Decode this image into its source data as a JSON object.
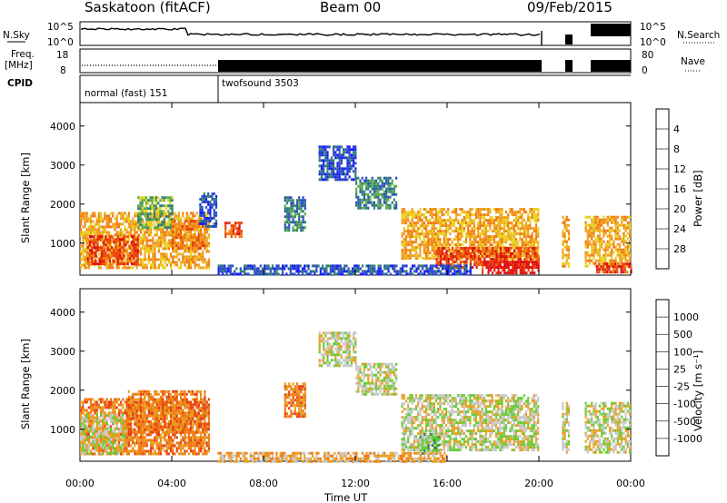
{
  "header": {
    "station": "Saskatoon (fitACF)",
    "beam": "Beam 00",
    "date": "09/Feb/2015"
  },
  "panels": {
    "nsky_label": "N.Sky",
    "freq_label_1": "Freq.",
    "freq_label_2": "[MHz]",
    "cpid_label": "CPID",
    "nsearch_label": "N.Search",
    "nave_label": "Nave",
    "nsky_ticks": [
      "10^5",
      "10^0"
    ],
    "nsearch_ticks": [
      "10^5",
      "10^0"
    ],
    "freq_ticks": [
      "18",
      "8"
    ],
    "nave_ticks": [
      "80",
      "0"
    ],
    "cpid_segments": [
      {
        "label": "normal (fast) 151",
        "start_hour": 0,
        "end_hour": 6
      },
      {
        "label": "twofsound 3503",
        "start_hour": 6,
        "end_hour": 24
      }
    ]
  },
  "chart_data": [
    {
      "type": "heatmap",
      "name": "Power",
      "xlabel": "",
      "ylabel": "Slant Range [km]",
      "xlim": [
        0,
        24
      ],
      "ylim": [
        180,
        4600
      ],
      "x_ticks": [
        "00:00",
        "04:00",
        "08:00",
        "12:00",
        "16:00",
        "20:00",
        "00:00"
      ],
      "y_ticks": [
        "1000",
        "2000",
        "3000",
        "4000"
      ],
      "y_tick_values": [
        1000,
        2000,
        3000,
        4000
      ],
      "colorbar": {
        "label": "Power [dB]",
        "ticks": [
          "4",
          "8",
          "12",
          "16",
          "20",
          "24",
          "28"
        ],
        "colors": [
          "#1a1aff",
          "#2b4fbf",
          "#2f7f74",
          "#5aab4a",
          "#e8d01c",
          "#f0a020",
          "#f07a10",
          "#e8440e",
          "#e01010"
        ]
      },
      "regions": [
        {
          "t0": 0.0,
          "t1": 5.6,
          "r0": 400,
          "r1": 1800,
          "level": 5
        },
        {
          "t0": 0.3,
          "t1": 2.5,
          "r0": 500,
          "r1": 1200,
          "level": 7
        },
        {
          "t0": 2.5,
          "t1": 4.0,
          "r0": 1400,
          "r1": 2200,
          "level": 3
        },
        {
          "t0": 4.0,
          "t1": 5.4,
          "r0": 900,
          "r1": 1600,
          "level": 6
        },
        {
          "t0": 5.2,
          "t1": 5.9,
          "r0": 1400,
          "r1": 2300,
          "level": 1
        },
        {
          "t0": 6.3,
          "t1": 7.0,
          "r0": 1150,
          "r1": 1550,
          "level": 7
        },
        {
          "t0": 8.9,
          "t1": 9.8,
          "r0": 1300,
          "r1": 2200,
          "level": 2
        },
        {
          "t0": 10.4,
          "t1": 12.0,
          "r0": 2600,
          "r1": 3500,
          "level": 1
        },
        {
          "t0": 12.0,
          "t1": 13.8,
          "r0": 1900,
          "r1": 2700,
          "level": 2
        },
        {
          "t0": 14.0,
          "t1": 20.0,
          "r0": 600,
          "r1": 1900,
          "level": 5
        },
        {
          "t0": 15.5,
          "t1": 20.0,
          "r0": 400,
          "r1": 900,
          "level": 7
        },
        {
          "t0": 17.5,
          "t1": 20.0,
          "r0": 250,
          "r1": 550,
          "level": 8
        },
        {
          "t0": 21.0,
          "t1": 21.3,
          "r0": 400,
          "r1": 1700,
          "level": 5
        },
        {
          "t0": 22.0,
          "t1": 24.0,
          "r0": 400,
          "r1": 1700,
          "level": 5
        },
        {
          "t0": 22.5,
          "t1": 24.0,
          "r0": 250,
          "r1": 500,
          "level": 7
        },
        {
          "t0": 6.0,
          "t1": 17.0,
          "r0": 180,
          "r1": 450,
          "level": 1
        }
      ]
    },
    {
      "type": "heatmap",
      "name": "Velocity",
      "xlabel": "Time UT",
      "ylabel": "Slant Range [km]",
      "xlim": [
        0,
        24
      ],
      "ylim": [
        180,
        4600
      ],
      "x_ticks": [
        "00:00",
        "04:00",
        "08:00",
        "12:00",
        "16:00",
        "20:00",
        "00:00"
      ],
      "y_ticks": [
        "1000",
        "2000",
        "3000",
        "4000"
      ],
      "y_tick_values": [
        1000,
        2000,
        3000,
        4000
      ],
      "colorbar": {
        "label": "Velocity [m s⁻¹]",
        "ticks": [
          "1000",
          "500",
          "100",
          "25",
          "-25",
          "-100",
          "-500",
          "-1000"
        ],
        "colors": [
          "#2244cc",
          "#3377aa",
          "#2f8a50",
          "#66cc33",
          "#c8c8c8",
          "#e8a020",
          "#f07a10",
          "#e84010",
          "#e01010"
        ]
      },
      "regions": [
        {
          "t0": 0.0,
          "t1": 5.6,
          "r0": 400,
          "r1": 1800,
          "level": 6
        },
        {
          "t0": 0.0,
          "t1": 2.0,
          "r0": 400,
          "r1": 1400,
          "level": 4
        },
        {
          "t0": 2.0,
          "t1": 5.4,
          "r0": 900,
          "r1": 2000,
          "level": 6
        },
        {
          "t0": 8.9,
          "t1": 9.8,
          "r0": 1300,
          "r1": 2200,
          "level": 6
        },
        {
          "t0": 10.4,
          "t1": 12.0,
          "r0": 2600,
          "r1": 3500,
          "level": 4
        },
        {
          "t0": 12.0,
          "t1": 13.8,
          "r0": 1900,
          "r1": 2700,
          "level": 4
        },
        {
          "t0": 14.0,
          "t1": 20.0,
          "r0": 500,
          "r1": 1900,
          "level": 4
        },
        {
          "t0": 14.8,
          "t1": 15.6,
          "r0": 400,
          "r1": 900,
          "level": 3
        },
        {
          "t0": 21.0,
          "t1": 21.3,
          "r0": 400,
          "r1": 1700,
          "level": 4
        },
        {
          "t0": 22.0,
          "t1": 24.0,
          "r0": 400,
          "r1": 1700,
          "level": 4
        },
        {
          "t0": 6.0,
          "t1": 16.0,
          "r0": 180,
          "r1": 420,
          "level": 5
        }
      ]
    }
  ]
}
